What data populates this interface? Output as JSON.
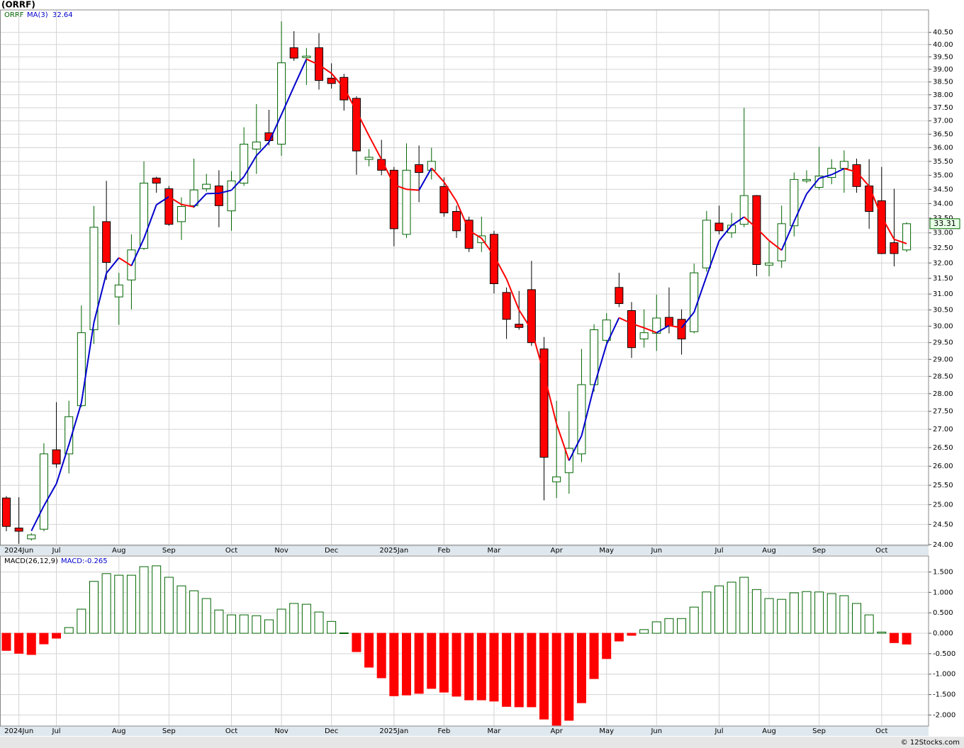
{
  "watermark": "© 12Stocks.com",
  "chart_data": [
    {
      "type": "candlestick",
      "title": "(ORRF)",
      "log": true,
      "grid": true,
      "categories": [
        null,
        "2024Jun",
        null,
        null,
        "Jul",
        null,
        null,
        null,
        null,
        "Aug",
        null,
        null,
        null,
        "Sep",
        null,
        null,
        null,
        null,
        "Oct",
        null,
        null,
        null,
        "Nov",
        null,
        null,
        null,
        "Dec",
        null,
        null,
        null,
        null,
        "2025Jan",
        null,
        null,
        null,
        "Feb",
        null,
        null,
        null,
        "Mar",
        null,
        null,
        null,
        null,
        "Apr",
        null,
        null,
        null,
        "May",
        null,
        null,
        null,
        "Jun",
        null,
        null,
        null,
        null,
        "Jul",
        null,
        null,
        null,
        "Aug",
        null,
        null,
        null,
        "Sep",
        null,
        null,
        null,
        null,
        "Oct",
        null,
        null
      ],
      "ylim": [
        23.98,
        41.44
      ],
      "yticks": [
        {
          "value": 24,
          "label": "24.00"
        },
        {
          "value": 24.5,
          "label": "24.50"
        },
        {
          "value": 25,
          "label": "25.00"
        },
        {
          "value": 25.5,
          "label": "25.50"
        },
        {
          "value": 26,
          "label": "26.00"
        },
        {
          "value": 26.5,
          "label": "26.50"
        },
        {
          "value": 27,
          "label": "27.00"
        },
        {
          "value": 27.5,
          "label": "27.50"
        },
        {
          "value": 28,
          "label": "28.00"
        },
        {
          "value": 28.5,
          "label": "28.50"
        },
        {
          "value": 29,
          "label": "29.00"
        },
        {
          "value": 29.5,
          "label": "29.50"
        },
        {
          "value": 30,
          "label": "30.00"
        },
        {
          "value": 30.5,
          "label": "30.50"
        },
        {
          "value": 31,
          "label": "31.00"
        },
        {
          "value": 31.5,
          "label": "31.50"
        },
        {
          "value": 32,
          "label": "32.00"
        },
        {
          "value": 32.5,
          "label": "32.50"
        },
        {
          "value": 33,
          "label": "33.00"
        },
        {
          "value": 33.5,
          "label": "33.50"
        },
        {
          "value": 34,
          "label": "34.00"
        },
        {
          "value": 34.5,
          "label": "34.50"
        },
        {
          "value": 35,
          "label": "35.00"
        },
        {
          "value": 35.5,
          "label": "35.50"
        },
        {
          "value": 36,
          "label": "36.00"
        },
        {
          "value": 36.5,
          "label": "36.50"
        },
        {
          "value": 37,
          "label": "37.00"
        },
        {
          "value": 37.5,
          "label": "37.50"
        },
        {
          "value": 38,
          "label": "38.00"
        },
        {
          "value": 38.5,
          "label": "38.50"
        },
        {
          "value": 39,
          "label": "39.00"
        },
        {
          "value": 39.5,
          "label": "39.50"
        },
        {
          "value": 40,
          "label": "40.00"
        },
        {
          "value": 40.5,
          "label": "40.50"
        }
      ],
      "series": [
        {
          "name": "ORRF",
          "up_color": "#006400",
          "down_color": "#ff0000",
          "open": [
            25.17,
            24.41,
            24.14,
            24.38,
            26.44,
            26.33,
            27.66,
            29.89,
            33.38,
            30.91,
            31.45,
            32.48,
            34.9,
            34.52,
            33.38,
            33.93,
            34.52,
            34.62,
            33.75,
            34.72,
            35.95,
            36.55,
            36.13,
            39.87,
            39.47,
            39.87,
            38.65,
            38.68,
            37.86,
            35.57,
            35.57,
            35.18,
            32.95,
            35.38,
            35.18,
            34.6,
            33.73,
            33.43,
            32.67,
            32.95,
            31.05,
            30.06,
            31.14,
            29.31,
            25.59,
            25.83,
            26.33,
            28.26,
            29.57,
            31.21,
            30.48,
            29.61,
            29.78,
            30.27,
            30.21,
            29.83,
            31.84,
            33.33,
            33.0,
            33.29,
            34.28,
            31.93,
            32.07,
            33.24,
            34.8,
            34.57,
            34.92,
            35.25,
            35.38,
            34.62,
            34.1,
            32.67,
            32.43
          ],
          "high": [
            25.22,
            25.19,
            24.28,
            26.62,
            27.76,
            27.8,
            30.64,
            33.92,
            34.8,
            31.68,
            32.95,
            35.5,
            34.95,
            34.62,
            34.22,
            35.6,
            35.05,
            35.18,
            35.15,
            36.76,
            37.64,
            37.42,
            40.96,
            40.55,
            39.86,
            40.47,
            39.24,
            38.82,
            37.94,
            35.95,
            36.29,
            35.3,
            36.16,
            36.08,
            36.0,
            34.92,
            33.93,
            33.55,
            33.55,
            33.07,
            31.21,
            31.1,
            32.07,
            29.67,
            27.8,
            27.5,
            29.31,
            30.06,
            30.4,
            31.68,
            30.75,
            30.52,
            30.98,
            31.21,
            30.52,
            31.98,
            33.75,
            33.93,
            33.68,
            37.5,
            34.3,
            32.71,
            33.93,
            35.1,
            35.18,
            36.03,
            35.58,
            35.9,
            35.6,
            35.58,
            35.3,
            34.52,
            33.36
          ],
          "low": [
            24.33,
            24.02,
            24.1,
            24.33,
            25.96,
            25.81,
            27.62,
            29.46,
            31.45,
            30.04,
            30.52,
            32.43,
            34.38,
            33.24,
            32.76,
            33.85,
            34.42,
            33.19,
            33.07,
            34.62,
            35.05,
            36.08,
            35.7,
            39.34,
            38.38,
            38.2,
            38.24,
            37.39,
            35.02,
            35.32,
            35.0,
            32.55,
            32.83,
            34.05,
            34.85,
            33.55,
            32.83,
            32.36,
            32.36,
            31.02,
            29.61,
            29.89,
            29.4,
            25.11,
            25.17,
            25.28,
            26.11,
            28.06,
            29.48,
            30.59,
            29.04,
            29.35,
            29.25,
            29.78,
            29.14,
            29.78,
            31.72,
            32.95,
            32.83,
            33.19,
            31.57,
            31.57,
            31.84,
            32.88,
            34.72,
            34.48,
            34.68,
            34.38,
            34.38,
            33.14,
            32.29,
            31.89,
            32.36
          ],
          "close": [
            24.45,
            24.33,
            24.24,
            26.33,
            26.06,
            27.35,
            29.8,
            33.19,
            32.02,
            31.29,
            32.43,
            34.72,
            34.72,
            33.29,
            33.9,
            34.48,
            34.68,
            33.93,
            34.8,
            36.13,
            36.21,
            36.26,
            39.26,
            39.45,
            39.53,
            38.56,
            38.44,
            37.8,
            35.88,
            35.65,
            35.18,
            33.14,
            35.18,
            35.1,
            35.5,
            33.68,
            33.07,
            32.48,
            32.9,
            31.33,
            30.21,
            29.96,
            29.5,
            26.24,
            25.72,
            26.48,
            28.26,
            29.89,
            30.19,
            30.7,
            29.35,
            29.8,
            30.25,
            30.0,
            29.61,
            31.68,
            33.43,
            33.07,
            33.26,
            34.28,
            31.95,
            32.0,
            33.31,
            34.85,
            34.85,
            34.97,
            35.25,
            35.5,
            34.6,
            33.73,
            32.31,
            32.31,
            33.31
          ]
        },
        {
          "name": "MA(3)",
          "color": "#0000cc",
          "down_color": "#ff0000",
          "values": [
            null,
            null,
            24.34,
            24.97,
            25.54,
            26.58,
            27.74,
            30.11,
            31.67,
            32.17,
            31.91,
            32.81,
            33.96,
            34.24,
            33.97,
            33.89,
            34.35,
            34.36,
            34.47,
            34.95,
            35.71,
            36.2,
            37.24,
            38.32,
            39.41,
            39.18,
            38.84,
            38.27,
            37.37,
            36.44,
            35.57,
            34.66,
            34.5,
            34.47,
            35.26,
            34.76,
            34.08,
            33.08,
            32.82,
            32.24,
            31.48,
            30.5,
            29.89,
            28.57,
            27.15,
            26.15,
            26.82,
            28.21,
            29.45,
            30.26,
            30.08,
            29.95,
            29.8,
            30.02,
            29.95,
            30.43,
            31.57,
            32.73,
            33.25,
            33.54,
            33.16,
            32.74,
            32.42,
            33.39,
            34.34,
            34.89,
            35.02,
            35.24,
            35.12,
            34.61,
            33.55,
            32.78,
            32.64
          ]
        }
      ]
    },
    {
      "type": "bar",
      "title": "MACD(26,12,9)",
      "legend": "MACD:-0.265",
      "grid": true,
      "up_color": "#006400",
      "down_color": "#ff0000",
      "categories": [
        null,
        "2024Jun",
        null,
        null,
        "Jul",
        null,
        null,
        null,
        null,
        "Aug",
        null,
        null,
        null,
        "Sep",
        null,
        null,
        null,
        null,
        "Oct",
        null,
        null,
        null,
        "Nov",
        null,
        null,
        null,
        "Dec",
        null,
        null,
        null,
        null,
        "2025Jan",
        null,
        null,
        null,
        "Feb",
        null,
        null,
        null,
        "Mar",
        null,
        null,
        null,
        null,
        "Apr",
        null,
        null,
        null,
        "May",
        null,
        null,
        null,
        "Jun",
        null,
        null,
        null,
        null,
        "Jul",
        null,
        null,
        null,
        "Aug",
        null,
        null,
        null,
        "Sep",
        null,
        null,
        null,
        null,
        "Oct",
        null,
        null
      ],
      "ylim": [
        -2.27,
        1.89
      ],
      "yticks": [
        {
          "value": -2,
          "label": "-2.000"
        },
        {
          "value": -1.5,
          "label": "-1.500"
        },
        {
          "value": -1,
          "label": "-1.000"
        },
        {
          "value": -0.5,
          "label": "-0.500"
        },
        {
          "value": 0,
          "label": "0.000"
        },
        {
          "value": 0.5,
          "label": "0.500"
        },
        {
          "value": 1,
          "label": "1.000"
        },
        {
          "value": 1.5,
          "label": "1.500"
        }
      ],
      "values": [
        -0.42,
        -0.49,
        -0.52,
        -0.26,
        -0.12,
        0.14,
        0.59,
        1.27,
        1.46,
        1.42,
        1.42,
        1.63,
        1.65,
        1.37,
        1.16,
        1.04,
        0.85,
        0.57,
        0.45,
        0.45,
        0.43,
        0.33,
        0.59,
        0.73,
        0.71,
        0.52,
        0.29,
        0.01,
        -0.45,
        -0.83,
        -1.09,
        -1.53,
        -1.51,
        -1.47,
        -1.35,
        -1.44,
        -1.54,
        -1.63,
        -1.63,
        -1.66,
        -1.79,
        -1.8,
        -1.8,
        -2.1,
        -2.25,
        -2.13,
        -1.7,
        -1.11,
        -0.62,
        -0.19,
        -0.05,
        0.09,
        0.28,
        0.36,
        0.36,
        0.64,
        1.01,
        1.16,
        1.25,
        1.37,
        1.07,
        0.85,
        0.83,
        0.99,
        1.02,
        1.01,
        0.97,
        0.92,
        0.73,
        0.45,
        0.03,
        -0.23,
        -0.265
      ]
    }
  ]
}
